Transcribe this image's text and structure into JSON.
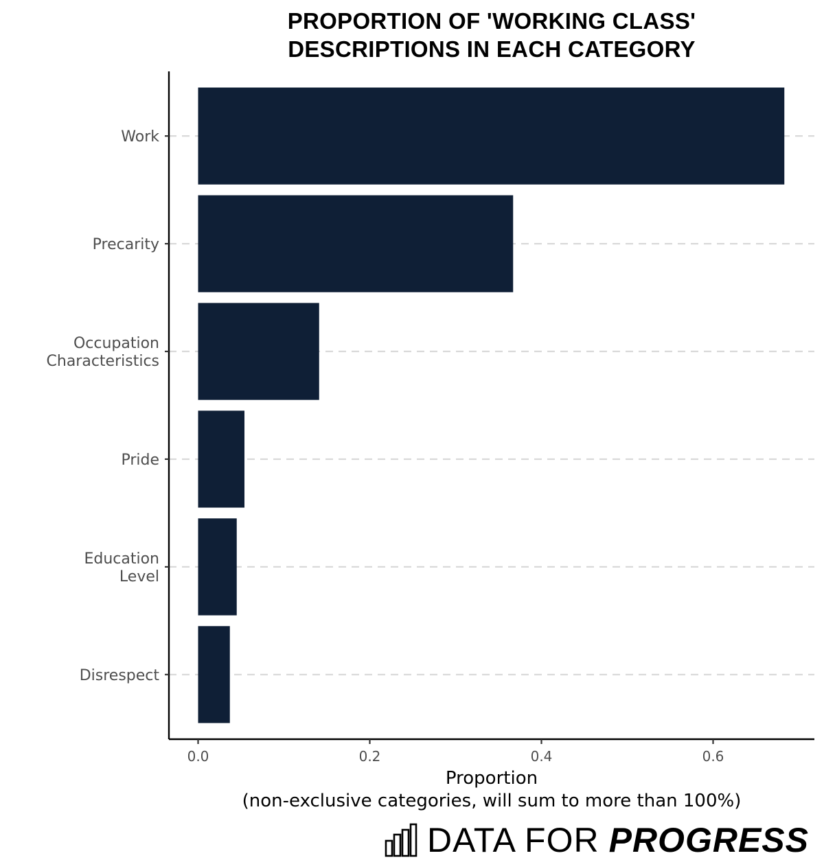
{
  "chart_data": {
    "type": "bar",
    "orientation": "horizontal",
    "title_lines": [
      "PROPORTION OF 'WORKING CLASS'",
      "DESCRIPTIONS IN EACH CATEGORY"
    ],
    "categories": [
      [
        "Work"
      ],
      [
        "Precarity"
      ],
      [
        "Occupation",
        "Characteristics"
      ],
      [
        "Pride"
      ],
      [
        "Education",
        "Level"
      ],
      [
        "Disrespect"
      ]
    ],
    "values": [
      0.683,
      0.367,
      0.141,
      0.054,
      0.045,
      0.037
    ],
    "xlabel_lines": [
      "Proportion",
      "(non-exclusive categories, will sum to more than 100%)"
    ],
    "ylabel": "",
    "xlim": [
      -0.034,
      0.718
    ],
    "xticks": [
      0.0,
      0.2,
      0.4,
      0.6
    ],
    "xtick_labels": [
      "0.0",
      "0.2",
      "0.4",
      "0.6"
    ],
    "grid": "horizontal dashed",
    "bar_color": "#0f1f36",
    "grid_color": "#d9d9d9"
  },
  "brand": {
    "name_regular": "DATA FOR",
    "name_bold": "PROGRESS",
    "icon": "bar-chart-icon"
  }
}
